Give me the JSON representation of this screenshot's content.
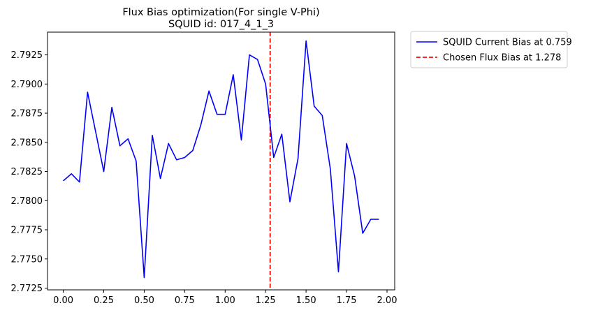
{
  "chart_data": {
    "type": "line",
    "title_line1": "Flux Bias optimization(For single V-Phi)",
    "title_line2": "SQUID id: 017_4_1_3",
    "xlabel": "",
    "ylabel": "",
    "xlim": [
      -0.0975,
      2.0475
    ],
    "ylim": [
      2.77235,
      2.79445
    ],
    "grid": false,
    "legend_placement": "outside-right-top",
    "x_ticks": [
      "0.00",
      "0.25",
      "0.50",
      "0.75",
      "1.00",
      "1.25",
      "1.50",
      "1.75",
      "2.00"
    ],
    "x_tick_values": [
      0.0,
      0.25,
      0.5,
      0.75,
      1.0,
      1.25,
      1.5,
      1.75,
      2.0
    ],
    "y_ticks": [
      "2.7725",
      "2.7750",
      "2.7775",
      "2.7800",
      "2.7825",
      "2.7850",
      "2.7875",
      "2.7900",
      "2.7925"
    ],
    "y_tick_values": [
      2.7725,
      2.775,
      2.7775,
      2.78,
      2.7825,
      2.785,
      2.7875,
      2.79,
      2.7925
    ],
    "series": [
      {
        "name": "SQUID Current Bias at 0.759",
        "color": "#0000ff",
        "style": "solid",
        "x": [
          0.0,
          0.05,
          0.1,
          0.15,
          0.2,
          0.25,
          0.3,
          0.35,
          0.4,
          0.45,
          0.5,
          0.55,
          0.6,
          0.65,
          0.7,
          0.75,
          0.8,
          0.85,
          0.9,
          0.95,
          1.0,
          1.05,
          1.1,
          1.15,
          1.2,
          1.25,
          1.3,
          1.35,
          1.4,
          1.45,
          1.5,
          1.55,
          1.6,
          1.65,
          1.7,
          1.75,
          1.8,
          1.85,
          1.9,
          1.95
        ],
        "y": [
          2.7817,
          2.7823,
          2.7816,
          2.7893,
          2.7859,
          2.7825,
          2.788,
          2.7847,
          2.7853,
          2.7834,
          2.7734,
          2.7856,
          2.7819,
          2.7849,
          2.7835,
          2.7837,
          2.7843,
          2.7865,
          2.7894,
          2.7874,
          2.7874,
          2.7908,
          2.7852,
          2.7925,
          2.7921,
          2.79,
          2.7837,
          2.7857,
          2.7799,
          2.7836,
          2.7937,
          2.7881,
          2.7873,
          2.7827,
          2.7739,
          2.7849,
          2.7821,
          2.7772,
          2.7784,
          2.7784
        ]
      },
      {
        "name": "Chosen Flux Bias at 1.278",
        "color": "#ff0000",
        "style": "dashed",
        "vline_x": 1.278
      }
    ]
  }
}
